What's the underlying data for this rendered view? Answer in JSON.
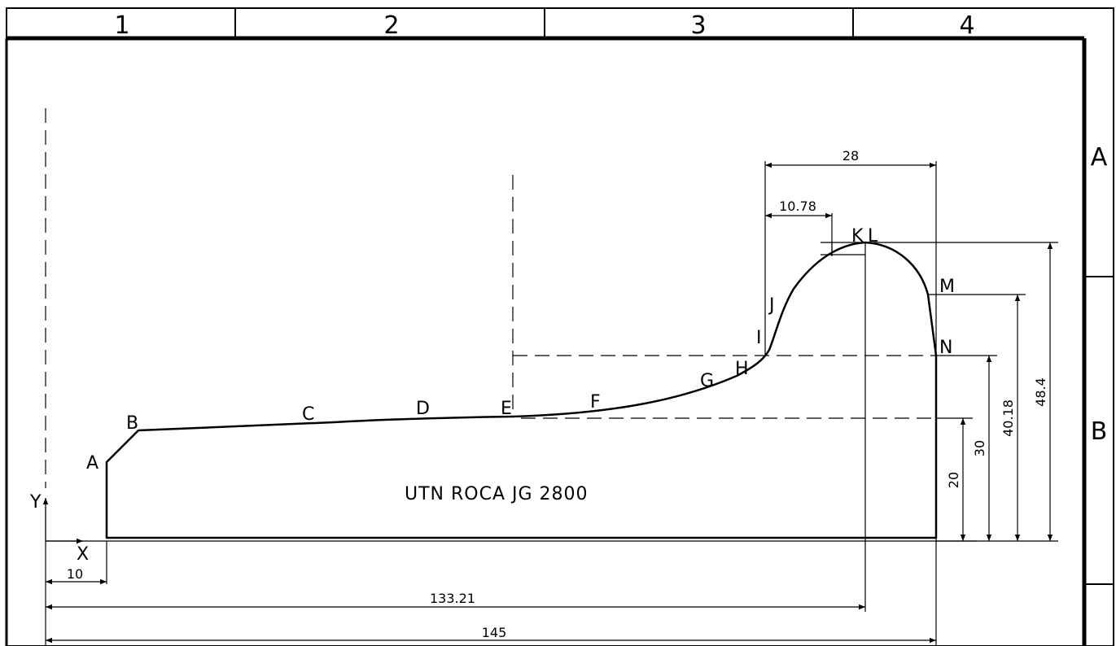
{
  "zones": {
    "columns": [
      "1",
      "2",
      "3",
      "4"
    ],
    "rows": [
      "A",
      "B"
    ]
  },
  "axes": {
    "x": "X",
    "y": "Y"
  },
  "points": [
    "A",
    "B",
    "C",
    "D",
    "E",
    "F",
    "G",
    "H",
    "I",
    "J",
    "K",
    "L",
    "M",
    "N"
  ],
  "caption": "UTN ROCA JG 2800",
  "dimensions": {
    "d10": "10",
    "d133": "133.21",
    "d145": "145",
    "d28": "28",
    "d1078": "10.78",
    "d20": "20",
    "d30": "30",
    "d4018": "40.18",
    "d484": "48.4"
  }
}
